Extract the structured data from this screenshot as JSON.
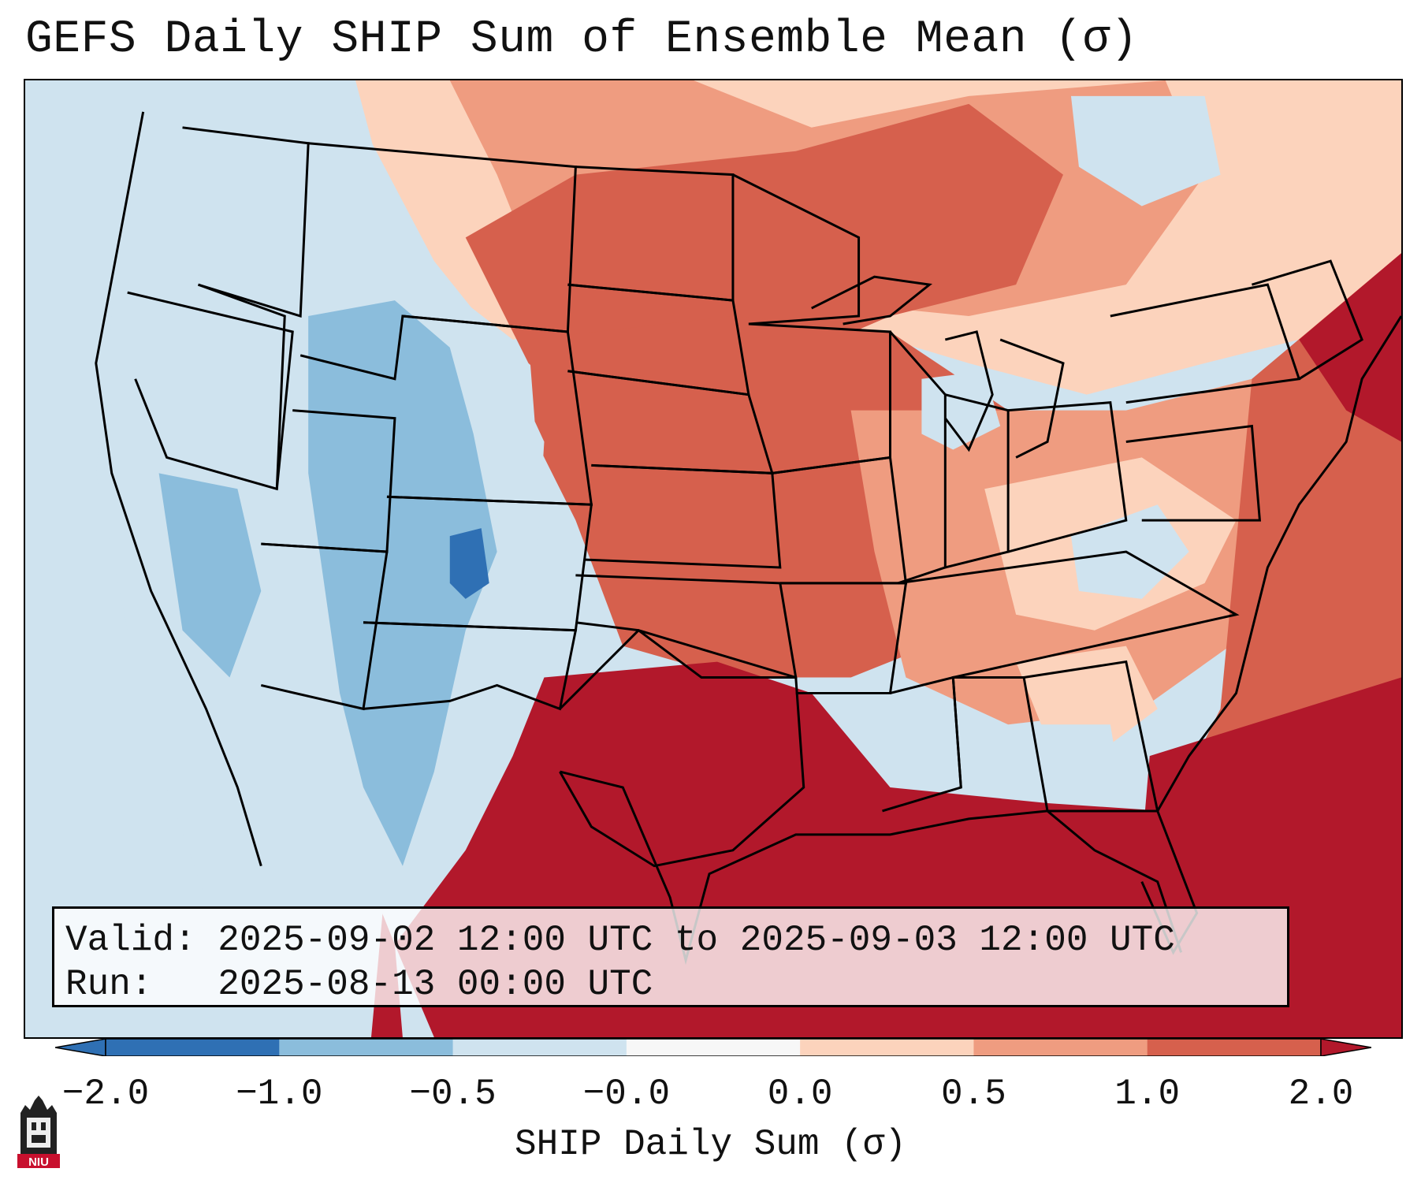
{
  "title": "GEFS Daily SHIP Sum of Ensemble Mean (σ)",
  "info": {
    "valid_label": "Valid:",
    "valid_value": "2025-09-02 12:00 UTC to 2025-09-03 12:00 UTC",
    "run_label": "Run:",
    "run_value": "2025-08-13 00:00 UTC"
  },
  "colorbar": {
    "label": "SHIP Daily Sum (σ)",
    "ticks": [
      "−2.0",
      "−1.0",
      "−0.5",
      "−0.0",
      "0.0",
      "0.5",
      "1.0",
      "2.0"
    ],
    "colors": [
      "#2f70b4",
      "#8bbddc",
      "#cfe3ef",
      "#f7f7f7",
      "#fcd3bc",
      "#ef9c80",
      "#d6604d",
      "#b2182b"
    ],
    "extend": "both"
  },
  "logo_text": "NIU",
  "map_colors": {
    "ocean_pacific": "#cfe3ef",
    "very_high": "#b2182b",
    "high": "#d6604d",
    "moderate": "#ef9c80",
    "slight": "#fcd3bc",
    "neutral": "#f7f7f7",
    "slight_low": "#cfe3ef",
    "low": "#8bbddc",
    "very_low": "#2f70b4"
  }
}
